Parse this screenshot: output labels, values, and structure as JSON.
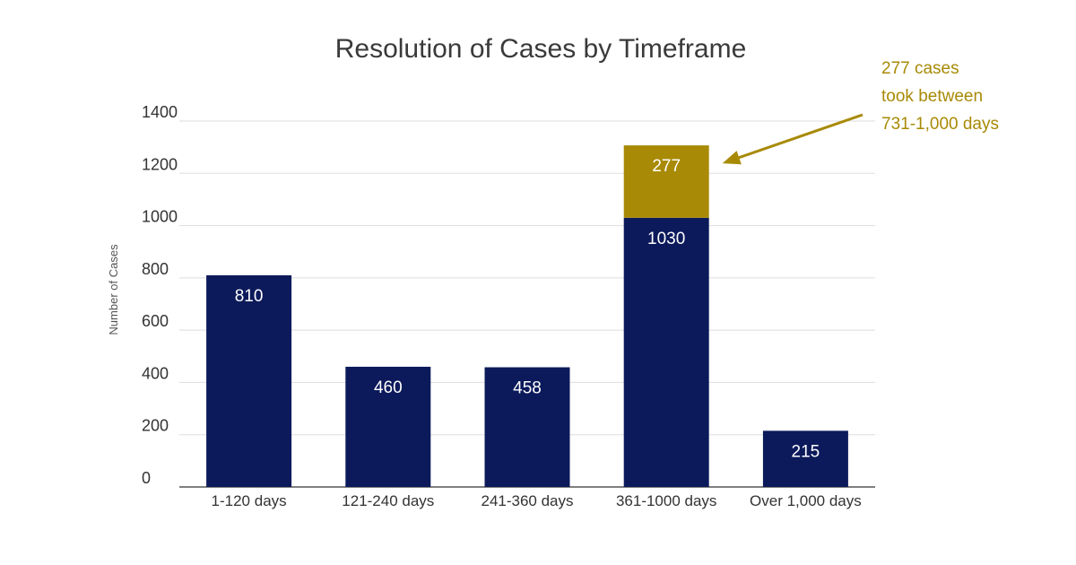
{
  "chart_data": {
    "type": "bar",
    "stacked": true,
    "title": "Resolution of Cases by Timeframe",
    "xlabel": "",
    "ylabel": "Number of Cases",
    "ylim": [
      0,
      1400
    ],
    "yticks": [
      0,
      200,
      400,
      600,
      800,
      1000,
      1200,
      1400
    ],
    "grid": true,
    "categories": [
      "1-120 days",
      "121-240 days",
      "241-360 days",
      "361-1000 days",
      "Over 1,000 days"
    ],
    "series": [
      {
        "color": "#0c1a5b",
        "values": [
          810,
          460,
          458,
          1030,
          215
        ]
      },
      {
        "color": "#a88a06",
        "values": [
          0,
          0,
          0,
          277,
          0
        ]
      }
    ],
    "annotation": {
      "lines": [
        "277 cases",
        "took between",
        "731-1,000 days"
      ],
      "category_index": 3,
      "color": "#a88a06"
    }
  }
}
